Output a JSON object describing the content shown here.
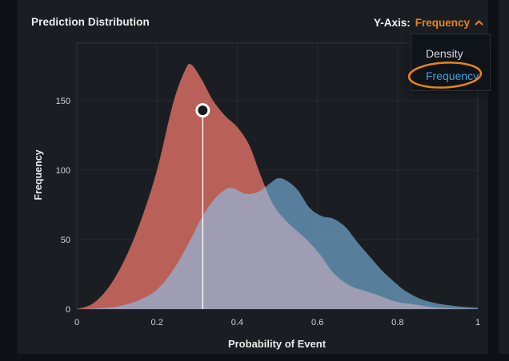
{
  "panel": {
    "title": "Prediction Distribution",
    "y_axis_control": {
      "label": "Y-Axis:",
      "value": "Frequency",
      "state": "open"
    },
    "dropdown": {
      "options": [
        "Density",
        "Frequency"
      ],
      "selected": "Frequency",
      "annotation": {
        "shape": "ellipse-highlight",
        "around_option": "Frequency",
        "color": "#e8831d"
      }
    }
  },
  "chart_data": {
    "type": "area",
    "title": "Prediction Distribution",
    "xlabel": "Probability of Event",
    "ylabel": "Frequency",
    "xlim": [
      0,
      1
    ],
    "ylim": [
      0,
      190
    ],
    "x_ticks": [
      "0",
      "0.2",
      "0.4",
      "0.6",
      "0.8",
      "1"
    ],
    "x_tick_values": [
      0,
      0.2,
      0.4,
      0.6,
      0.8,
      1
    ],
    "y_ticks": [
      "0",
      "50",
      "100",
      "150"
    ],
    "y_tick_values": [
      0,
      50,
      100,
      150
    ],
    "grid": true,
    "legend": "none",
    "series": [
      {
        "name": "red-distribution",
        "fill": "#b96158",
        "points": [
          [
            0,
            0
          ],
          [
            0.04,
            4
          ],
          [
            0.08,
            16
          ],
          [
            0.12,
            36
          ],
          [
            0.16,
            64
          ],
          [
            0.2,
            100
          ],
          [
            0.24,
            148
          ],
          [
            0.27,
            172
          ],
          [
            0.285,
            176
          ],
          [
            0.31,
            166
          ],
          [
            0.34,
            150
          ],
          [
            0.37,
            139
          ],
          [
            0.4,
            131
          ],
          [
            0.43,
            118
          ],
          [
            0.46,
            95
          ],
          [
            0.49,
            75
          ],
          [
            0.52,
            64
          ],
          [
            0.55,
            56
          ],
          [
            0.58,
            48
          ],
          [
            0.61,
            38
          ],
          [
            0.64,
            26
          ],
          [
            0.68,
            17
          ],
          [
            0.72,
            13
          ],
          [
            0.76,
            9
          ],
          [
            0.8,
            5
          ],
          [
            0.85,
            3
          ],
          [
            0.9,
            1
          ],
          [
            1,
            0
          ]
        ]
      },
      {
        "name": "blue-distribution",
        "fill": "rgba(139,208,255,0.55)",
        "points": [
          [
            0.02,
            0
          ],
          [
            0.08,
            1
          ],
          [
            0.12,
            3
          ],
          [
            0.16,
            7
          ],
          [
            0.2,
            14
          ],
          [
            0.24,
            28
          ],
          [
            0.28,
            48
          ],
          [
            0.31,
            65
          ],
          [
            0.34,
            78
          ],
          [
            0.37,
            86
          ],
          [
            0.39,
            87
          ],
          [
            0.42,
            83
          ],
          [
            0.45,
            84
          ],
          [
            0.48,
            90
          ],
          [
            0.5,
            94
          ],
          [
            0.52,
            93
          ],
          [
            0.55,
            86
          ],
          [
            0.58,
            73
          ],
          [
            0.61,
            67
          ],
          [
            0.64,
            65
          ],
          [
            0.67,
            59
          ],
          [
            0.7,
            48
          ],
          [
            0.73,
            38
          ],
          [
            0.76,
            28
          ],
          [
            0.79,
            20
          ],
          [
            0.82,
            13
          ],
          [
            0.86,
            7
          ],
          [
            0.9,
            4
          ],
          [
            0.95,
            2
          ],
          [
            1,
            1
          ]
        ]
      }
    ],
    "marker": {
      "x": 0.314,
      "y": 143
    }
  },
  "colors": {
    "panel_bg": "#1a1e23",
    "page_bg": "#0e1216",
    "grid": "#262b31",
    "plot_border": "#2d3339",
    "tick_text": "#d2d3d5",
    "accent_orange": "#e8831d",
    "option_blue": "#409fe0",
    "red_fill": "#b96158",
    "blue_fill": "rgba(139,208,255,0.55)",
    "marker_line": "#ffffff"
  }
}
